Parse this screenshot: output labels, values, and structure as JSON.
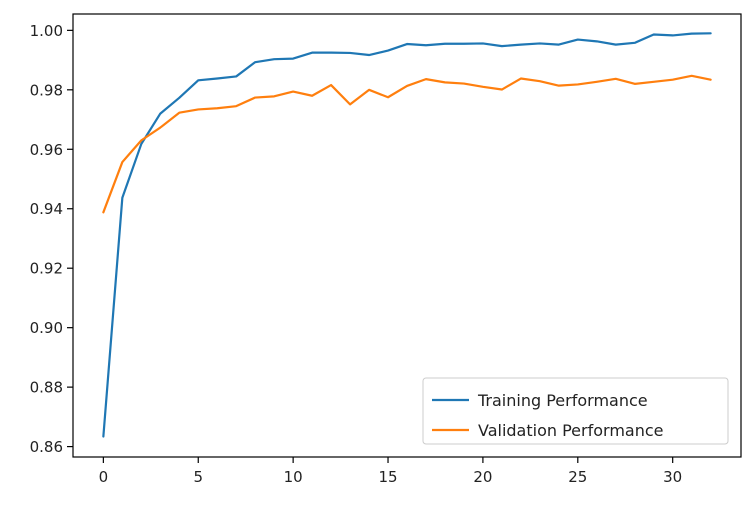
{
  "chart_data": {
    "type": "line",
    "title": "",
    "xlabel": "",
    "ylabel": "",
    "xlim": [
      -1.6,
      33.6
    ],
    "ylim": [
      0.8565,
      1.0055
    ],
    "xticks": [
      0,
      5,
      10,
      15,
      20,
      25,
      30
    ],
    "xtick_labels": [
      "0",
      "5",
      "10",
      "15",
      "20",
      "25",
      "30"
    ],
    "yticks": [
      0.86,
      0.88,
      0.9,
      0.92,
      0.94,
      0.96,
      0.98,
      1.0
    ],
    "ytick_labels": [
      "0.86",
      "0.88",
      "0.90",
      "0.92",
      "0.94",
      "0.96",
      "0.98",
      "1.00"
    ],
    "grid": false,
    "legend_position": "lower-right",
    "x": [
      0,
      1,
      2,
      3,
      4,
      5,
      6,
      7,
      8,
      9,
      10,
      11,
      12,
      13,
      14,
      15,
      16,
      17,
      18,
      19,
      20,
      21,
      22,
      23,
      24,
      25,
      26,
      27,
      28,
      29,
      30,
      31,
      32
    ],
    "series": [
      {
        "name": "Training Performance",
        "color": "#1f77b4",
        "values": [
          0.8634,
          0.9437,
          0.9618,
          0.972,
          0.9773,
          0.9832,
          0.9838,
          0.9845,
          0.9893,
          0.9903,
          0.9905,
          0.9925,
          0.9925,
          0.9924,
          0.9917,
          0.9932,
          0.9954,
          0.995,
          0.9955,
          0.9955,
          0.9956,
          0.9947,
          0.9952,
          0.9956,
          0.9952,
          0.9969,
          0.9963,
          0.9952,
          0.9958,
          0.9986,
          0.9983,
          0.9989,
          0.999
        ]
      },
      {
        "name": "Validation Performance",
        "color": "#ff7f0e",
        "values": [
          0.9388,
          0.9557,
          0.963,
          0.9673,
          0.9723,
          0.9734,
          0.9738,
          0.9745,
          0.9774,
          0.9778,
          0.9794,
          0.978,
          0.9816,
          0.9751,
          0.98,
          0.9775,
          0.9813,
          0.9836,
          0.9825,
          0.9821,
          0.981,
          0.9801,
          0.9838,
          0.9829,
          0.9814,
          0.9818,
          0.9827,
          0.9837,
          0.982,
          0.9827,
          0.9834,
          0.9847,
          0.9834
        ]
      }
    ]
  }
}
